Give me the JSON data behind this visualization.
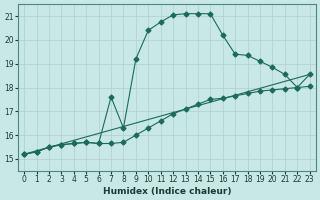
{
  "xlabel": "Humidex (Indice chaleur)",
  "bg_color": "#c8e8e5",
  "line_color": "#1a6b5a",
  "grid_color": "#b0cfcc",
  "xlim": [
    -0.5,
    23.5
  ],
  "ylim": [
    14.5,
    21.5
  ],
  "xticks": [
    0,
    1,
    2,
    3,
    4,
    5,
    6,
    7,
    8,
    9,
    10,
    11,
    12,
    13,
    14,
    15,
    16,
    17,
    18,
    19,
    20,
    21,
    22,
    23
  ],
  "yticks": [
    15,
    16,
    17,
    18,
    19,
    20,
    21
  ],
  "series": [
    {
      "x": [
        0,
        1,
        2,
        3,
        4,
        5,
        6,
        7,
        8,
        9,
        10,
        11,
        12,
        13,
        14,
        15,
        16,
        17,
        18,
        19,
        20,
        21,
        22,
        23
      ],
      "y": [
        15.2,
        15.3,
        15.5,
        15.6,
        15.65,
        15.7,
        15.65,
        17.6,
        16.3,
        19.2,
        20.4,
        20.75,
        21.05,
        21.1,
        21.1,
        21.1,
        20.2,
        19.4,
        19.35,
        19.1,
        18.85,
        18.55,
        18.0,
        18.55
      ]
    },
    {
      "x": [
        0,
        1,
        2,
        3,
        4,
        5,
        6,
        7,
        8,
        9,
        10,
        11,
        12,
        13,
        14,
        15,
        16,
        17,
        18,
        19,
        20,
        21,
        22,
        23
      ],
      "y": [
        15.2,
        15.3,
        15.5,
        15.6,
        15.65,
        15.7,
        15.65,
        15.65,
        15.7,
        16.0,
        16.3,
        16.6,
        16.9,
        17.1,
        17.3,
        17.5,
        17.55,
        17.65,
        17.75,
        17.85,
        17.9,
        17.95,
        18.0,
        18.05
      ]
    },
    {
      "x": [
        0,
        23
      ],
      "y": [
        15.2,
        18.55
      ]
    }
  ]
}
